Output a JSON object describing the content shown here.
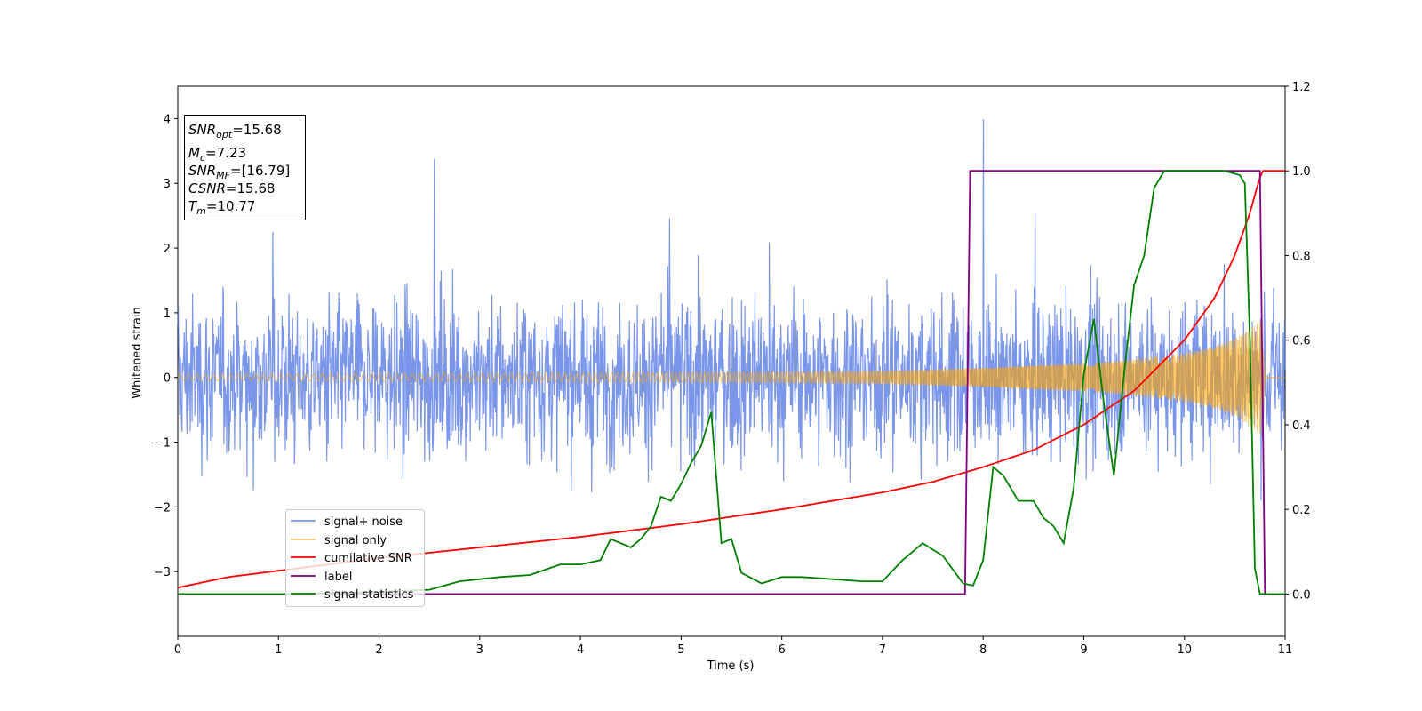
{
  "chart_data": {
    "type": "line",
    "xlabel": "Time (s)",
    "ylabel": "Whitened strain",
    "xlim": [
      0,
      11
    ],
    "ylim_left": [
      -4,
      4.5
    ],
    "ylim_right": [
      -0.1,
      1.2
    ],
    "x_ticks": [
      "0",
      "1",
      "2",
      "3",
      "4",
      "5",
      "6",
      "7",
      "8",
      "9",
      "10",
      "11"
    ],
    "y_ticks_left": [
      "−3",
      "−2",
      "−1",
      "0",
      "1",
      "2",
      "3",
      "4"
    ],
    "y_ticks_right": [
      "0.0",
      "0.2",
      "0.4",
      "0.6",
      "0.8",
      "1.0",
      "1.2"
    ],
    "legend_position": "lower-left",
    "annotations": {
      "snr_opt": {
        "sym": "SNR",
        "sub": "opt",
        "value": "=15.68"
      },
      "mc": {
        "sym": "M",
        "sub": "c",
        "value": "=7.23"
      },
      "snr_mf": {
        "sym": "SNR",
        "sub": "MF",
        "value": "=[16.79]"
      },
      "csnr": {
        "sym": "CSNR",
        "sub": "",
        "value": "=15.68"
      },
      "tm": {
        "sym": "T",
        "sub": "m",
        "value": "=10.77"
      }
    },
    "series": [
      {
        "name": "signal+ noise",
        "axis": "left",
        "color": "#4169e1",
        "description_values": {
          "noise_amplitude_approx": 1.0,
          "x_range": [
            0,
            11
          ]
        }
      },
      {
        "name": "signal only",
        "axis": "left",
        "color": "#ffa500",
        "envelope": {
          "x": [
            0,
            2,
            4,
            6,
            7,
            8,
            9,
            9.5,
            10,
            10.3,
            10.5,
            10.65,
            10.77,
            10.8,
            11
          ],
          "amp": [
            0.05,
            0.06,
            0.07,
            0.08,
            0.1,
            0.15,
            0.22,
            0.28,
            0.38,
            0.48,
            0.6,
            0.75,
            0.9,
            0.0,
            0.0
          ]
        }
      },
      {
        "name": "cumilative SNR",
        "axis": "right",
        "color": "#ff0000",
        "x": [
          0,
          0.5,
          1,
          1.5,
          2,
          3,
          4,
          5,
          6,
          7,
          7.5,
          8,
          8.5,
          9,
          9.5,
          10,
          10.3,
          10.5,
          10.65,
          10.72,
          10.77,
          11
        ],
        "y": [
          0.015,
          0.04,
          0.055,
          0.07,
          0.085,
          0.11,
          0.135,
          0.165,
          0.2,
          0.24,
          0.265,
          0.3,
          0.34,
          0.4,
          0.48,
          0.6,
          0.7,
          0.8,
          0.9,
          0.96,
          1.0,
          1.0
        ]
      },
      {
        "name": "label",
        "axis": "right",
        "color": "#800080",
        "x": [
          0,
          7.82,
          7.87,
          10.75,
          10.8,
          11
        ],
        "y": [
          0,
          0,
          1,
          1,
          0,
          0
        ]
      },
      {
        "name": "signal statistics",
        "axis": "right",
        "color": "#008000",
        "x": [
          0,
          1.2,
          2,
          2.5,
          2.8,
          3.2,
          3.5,
          3.8,
          4.0,
          4.1,
          4.2,
          4.3,
          4.4,
          4.5,
          4.6,
          4.7,
          4.8,
          4.9,
          5.0,
          5.1,
          5.2,
          5.3,
          5.4,
          5.5,
          5.6,
          5.8,
          6.0,
          6.2,
          6.5,
          6.8,
          7.0,
          7.2,
          7.4,
          7.6,
          7.8,
          7.9,
          8.0,
          8.1,
          8.2,
          8.35,
          8.5,
          8.6,
          8.7,
          8.8,
          8.9,
          9.0,
          9.1,
          9.2,
          9.3,
          9.4,
          9.5,
          9.6,
          9.7,
          9.8,
          9.9,
          10.0,
          10.2,
          10.4,
          10.55,
          10.6,
          10.65,
          10.7,
          10.75,
          10.8,
          10.85,
          11
        ],
        "y": [
          0.0,
          0.0,
          0.005,
          0.01,
          0.03,
          0.04,
          0.045,
          0.07,
          0.07,
          0.075,
          0.08,
          0.13,
          0.12,
          0.11,
          0.13,
          0.16,
          0.23,
          0.22,
          0.26,
          0.31,
          0.35,
          0.43,
          0.12,
          0.13,
          0.05,
          0.025,
          0.04,
          0.04,
          0.035,
          0.03,
          0.03,
          0.08,
          0.12,
          0.09,
          0.025,
          0.02,
          0.08,
          0.3,
          0.28,
          0.22,
          0.22,
          0.18,
          0.16,
          0.12,
          0.25,
          0.52,
          0.65,
          0.45,
          0.28,
          0.52,
          0.73,
          0.8,
          0.96,
          1.0,
          1.0,
          1.0,
          1.0,
          1.0,
          0.99,
          0.97,
          0.6,
          0.06,
          0.0,
          0.0,
          0.0,
          0.0
        ]
      }
    ]
  }
}
